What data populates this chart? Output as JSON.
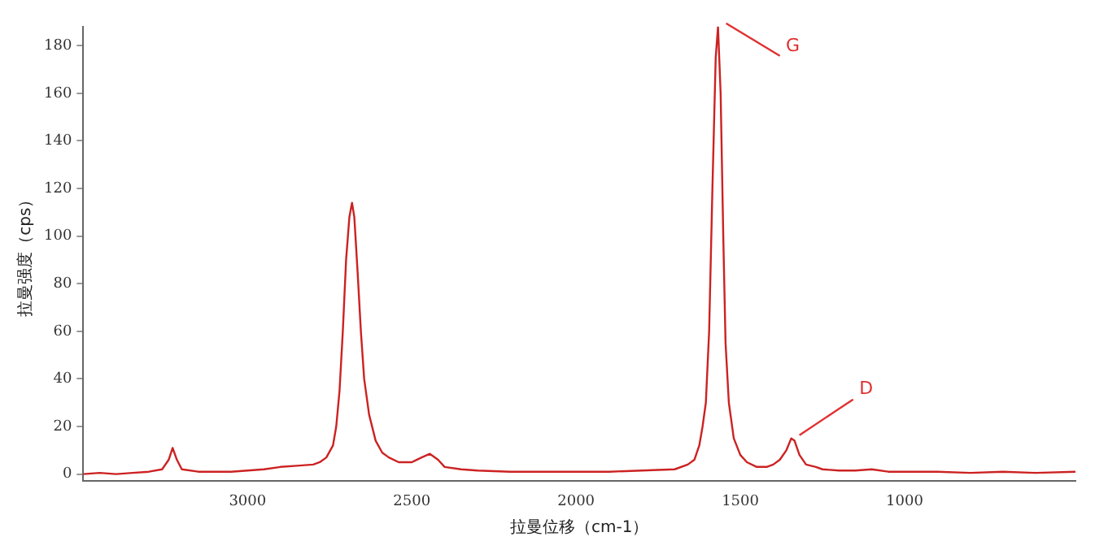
{
  "chart_data": {
    "type": "line",
    "xlabel": "拉曼位移（cm-1）",
    "ylabel": "拉曼强度（cps）",
    "x": [
      3500,
      3450,
      3400,
      3350,
      3300,
      3260,
      3240,
      3228,
      3215,
      3200,
      3150,
      3100,
      3050,
      3000,
      2950,
      2900,
      2850,
      2800,
      2780,
      2760,
      2740,
      2730,
      2720,
      2710,
      2700,
      2690,
      2682,
      2675,
      2665,
      2655,
      2645,
      2630,
      2610,
      2590,
      2570,
      2540,
      2500,
      2470,
      2445,
      2420,
      2400,
      2350,
      2300,
      2200,
      2100,
      2000,
      1900,
      1800,
      1700,
      1660,
      1640,
      1625,
      1615,
      1605,
      1595,
      1585,
      1575,
      1568,
      1560,
      1552,
      1545,
      1535,
      1520,
      1500,
      1480,
      1450,
      1420,
      1400,
      1380,
      1360,
      1345,
      1335,
      1320,
      1300,
      1270,
      1250,
      1200,
      1150,
      1100,
      1050,
      1000,
      900,
      800,
      700,
      600,
      480
    ],
    "series": [
      {
        "color": "#cc2222",
        "values": [
          0,
          0.5,
          0,
          0.5,
          1,
          2,
          6,
          11,
          6,
          2,
          1,
          1,
          1,
          1.5,
          2,
          3,
          3.5,
          4,
          5,
          7,
          12,
          20,
          35,
          60,
          90,
          108,
          114,
          108,
          85,
          60,
          40,
          25,
          14,
          9,
          7,
          5,
          5,
          7,
          8.5,
          6,
          3,
          2,
          1.5,
          1,
          1,
          1,
          1,
          1.5,
          2,
          4,
          6,
          12,
          20,
          30,
          60,
          120,
          175,
          188,
          160,
          100,
          55,
          30,
          15,
          8,
          5,
          3,
          3,
          4,
          6,
          10,
          15,
          14,
          8,
          4,
          3,
          2,
          1.5,
          1.5,
          2,
          1,
          1,
          1,
          0.5,
          1,
          0.5,
          1
        ]
      }
    ],
    "xlim": [
      3500,
      480
    ],
    "xticks": [
      3000,
      2500,
      2000,
      1500,
      1000
    ],
    "ylim": [
      -3,
      188
    ],
    "yticks": [
      0,
      20,
      40,
      60,
      80,
      100,
      120,
      140,
      160,
      180
    ],
    "grid": false,
    "legend": false,
    "marker": "none",
    "line_style": "solid",
    "annotations": [
      {
        "text": "G",
        "x": 1568,
        "y": 188
      },
      {
        "text": "D",
        "x": 1345,
        "y": 15
      }
    ]
  }
}
